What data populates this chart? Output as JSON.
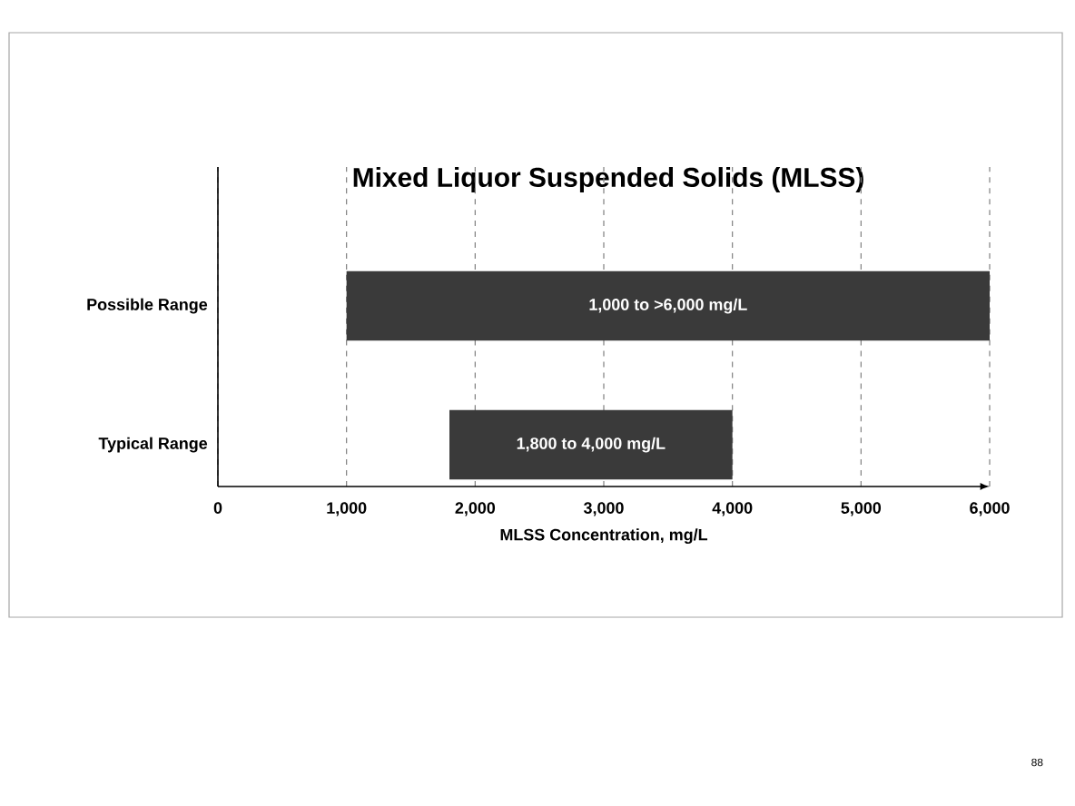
{
  "chart_data": {
    "type": "bar",
    "orientation": "horizontal",
    "title": "Mixed Liquor Suspended Solids (MLSS)",
    "xlabel": "MLSS Concentration, mg/L",
    "categories": [
      "Possible Range",
      "Typical Range"
    ],
    "base": [
      1000,
      1800
    ],
    "values": [
      5000,
      2200
    ],
    "color": "#3a3a3a",
    "xlim": [
      0,
      6000
    ],
    "xticks": [
      0,
      {
        "value": 1000,
        "label": "1,000"
      },
      {
        "value": 2000,
        "label": "2,000"
      },
      {
        "value": 3000,
        "label": "3,000"
      },
      {
        "value": 4000,
        "label": "4,000"
      },
      {
        "value": 5000,
        "label": "5,000"
      },
      {
        "value": 6000,
        "label": "6,000"
      }
    ],
    "grid": "x",
    "annotations": [
      "1,000 to >6,000 mg/L",
      "1,800 to 4,000 mg/L",
      "88"
    ]
  }
}
